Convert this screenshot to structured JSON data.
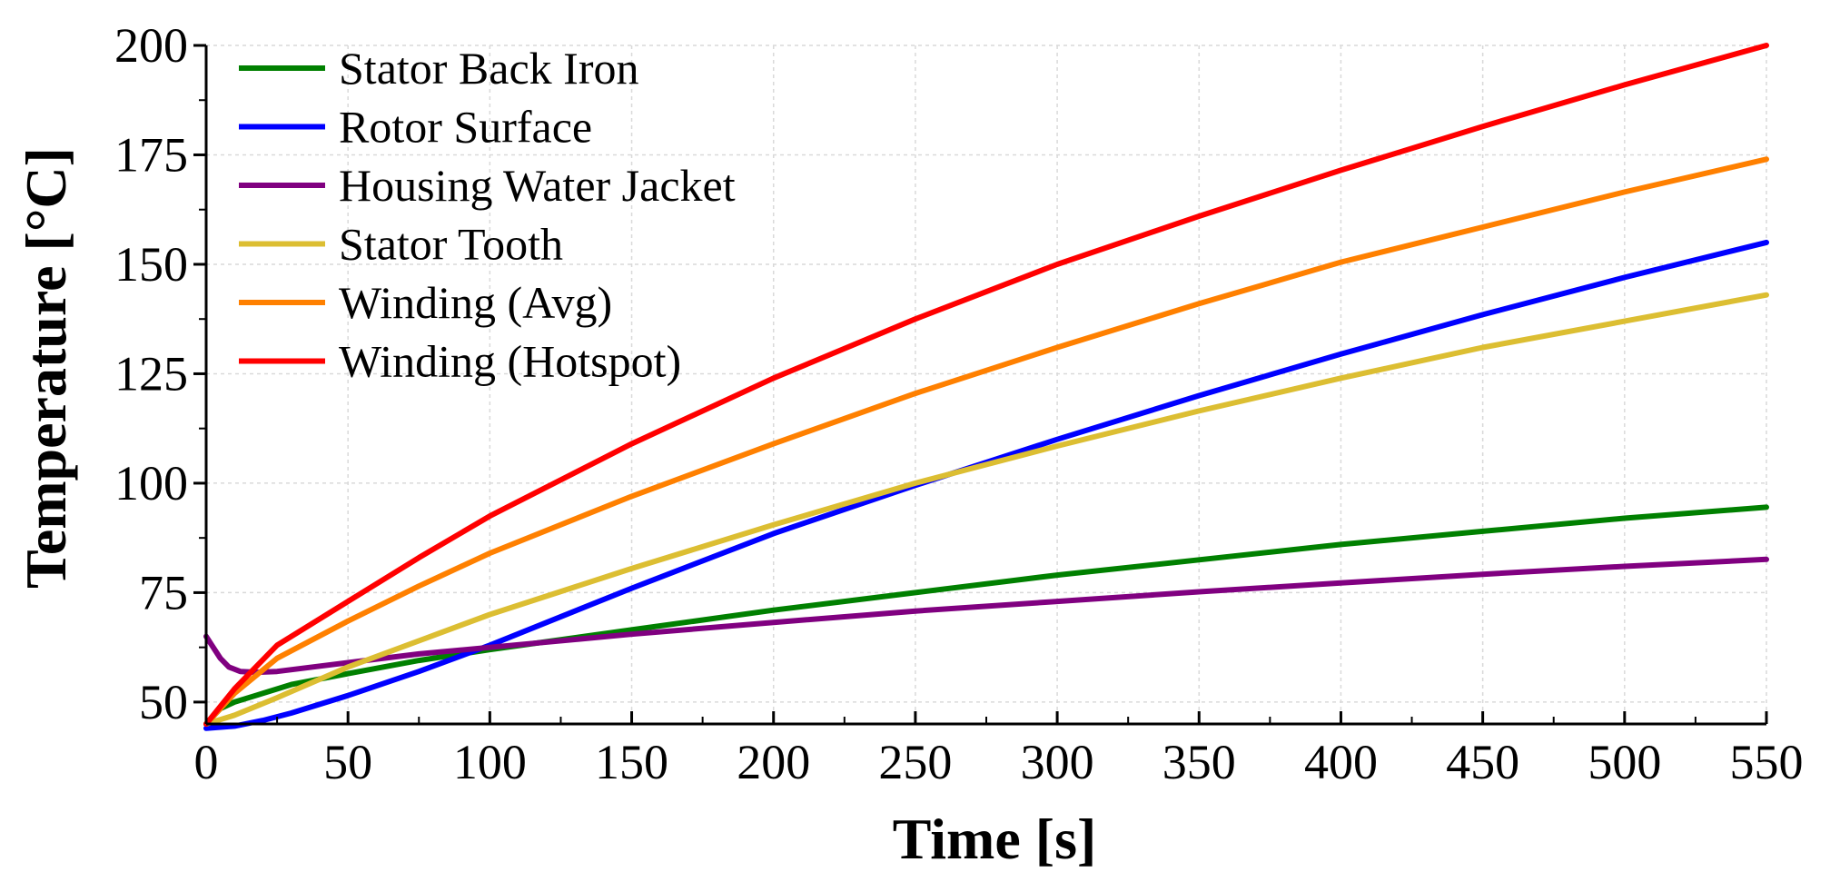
{
  "chart_data": {
    "type": "line",
    "title": "",
    "xlabel": "Time [s]",
    "ylabel": "Temperature [°C]",
    "xlim": [
      0,
      550
    ],
    "ylim": [
      45,
      200
    ],
    "xticks": [
      0,
      50,
      100,
      150,
      200,
      250,
      300,
      350,
      400,
      450,
      500,
      550
    ],
    "yticks": [
      50,
      75,
      100,
      125,
      150,
      175,
      200
    ],
    "grid": true,
    "legend_position": "top-left",
    "series": [
      {
        "name": "Stator Back Iron",
        "color": "#008000",
        "x": [
          0,
          5,
          10,
          20,
          30,
          50,
          75,
          100,
          150,
          200,
          250,
          300,
          350,
          400,
          450,
          500,
          550
        ],
        "y": [
          45,
          48.5,
          50,
          52,
          54,
          56.5,
          59.5,
          62,
          66.5,
          71,
          75,
          79,
          82.5,
          86,
          89,
          92,
          94.5
        ]
      },
      {
        "name": "Rotor Surface",
        "color": "#0000ff",
        "x": [
          0,
          10,
          20,
          30,
          50,
          75,
          100,
          150,
          200,
          250,
          300,
          350,
          400,
          450,
          500,
          550
        ],
        "y": [
          44,
          44.5,
          45.8,
          47.5,
          51.5,
          57,
          63,
          76,
          88.5,
          99.5,
          110,
          120,
          129.5,
          138.5,
          147,
          155
        ]
      },
      {
        "name": "Housing Water Jacket",
        "color": "#800080",
        "x": [
          0,
          2,
          5,
          8,
          12,
          18,
          25,
          35,
          50,
          75,
          100,
          150,
          200,
          250,
          300,
          350,
          400,
          450,
          500,
          550
        ],
        "y": [
          65,
          63,
          60,
          58,
          57,
          56.8,
          57,
          57.8,
          59,
          61,
          62.5,
          65.5,
          68.2,
          70.8,
          73,
          75.2,
          77.2,
          79.2,
          81,
          82.6
        ]
      },
      {
        "name": "Stator Tooth",
        "color": "#dcbe32",
        "x": [
          0,
          10,
          25,
          50,
          75,
          100,
          150,
          200,
          250,
          300,
          350,
          400,
          450,
          500,
          550
        ],
        "y": [
          45,
          47,
          51,
          58,
          64,
          70,
          80.5,
          90.5,
          100,
          108.5,
          116.5,
          124,
          131,
          137,
          143
        ]
      },
      {
        "name": "Winding (Avg)",
        "color": "#ff8000",
        "x": [
          0,
          10,
          25,
          50,
          75,
          100,
          150,
          200,
          250,
          300,
          350,
          400,
          450,
          500,
          550
        ],
        "y": [
          45,
          52,
          60,
          68.5,
          76.5,
          84,
          97,
          109,
          120.5,
          131,
          141,
          150.5,
          158.5,
          166.5,
          174
        ]
      },
      {
        "name": "Winding (Hotspot)",
        "color": "#ff0000",
        "x": [
          0,
          10,
          25,
          50,
          75,
          100,
          150,
          200,
          250,
          300,
          350,
          400,
          450,
          500,
          550
        ],
        "y": [
          45,
          53,
          63,
          73,
          83,
          92.5,
          109,
          124,
          137.5,
          150,
          161,
          171.5,
          181.5,
          191,
          200
        ]
      }
    ]
  }
}
